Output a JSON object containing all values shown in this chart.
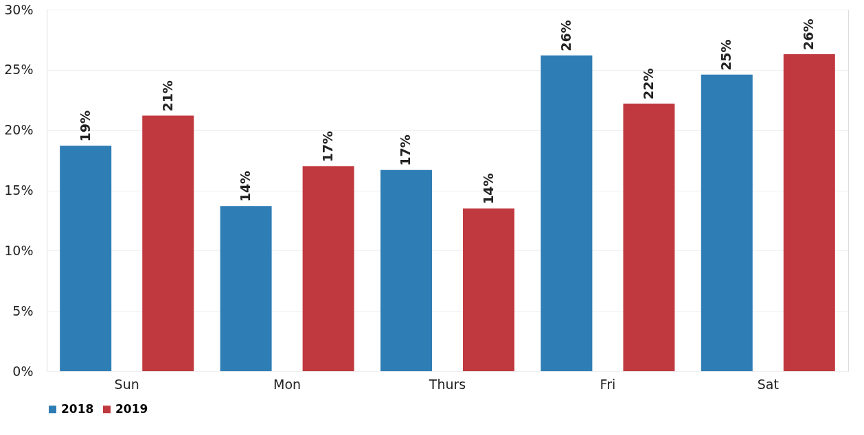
{
  "chart_data": {
    "type": "bar",
    "categories": [
      "Sun",
      "Mon",
      "Thurs",
      "Fri",
      "Sat"
    ],
    "series": [
      {
        "name": "2018",
        "color": "#2e7db5",
        "values": [
          18.7,
          13.7,
          16.7,
          26.2,
          24.6
        ],
        "value_labels": [
          "19%",
          "14%",
          "17%",
          "26%",
          "25%"
        ]
      },
      {
        "name": "2019",
        "color": "#c0393f",
        "values": [
          21.2,
          17.0,
          13.5,
          22.2,
          26.3
        ],
        "value_labels": [
          "21%",
          "17%",
          "14%",
          "22%",
          "26%"
        ]
      }
    ],
    "ylim": [
      0,
      30
    ],
    "yticks": [
      {
        "value": 0,
        "label": "0%"
      },
      {
        "value": 5,
        "label": "5%"
      },
      {
        "value": 10,
        "label": "10%"
      },
      {
        "value": 15,
        "label": "15%"
      },
      {
        "value": 20,
        "label": "20%"
      },
      {
        "value": 25,
        "label": "25%"
      },
      {
        "value": 30,
        "label": "30%"
      }
    ],
    "grid": "y",
    "legend": "bottom"
  }
}
